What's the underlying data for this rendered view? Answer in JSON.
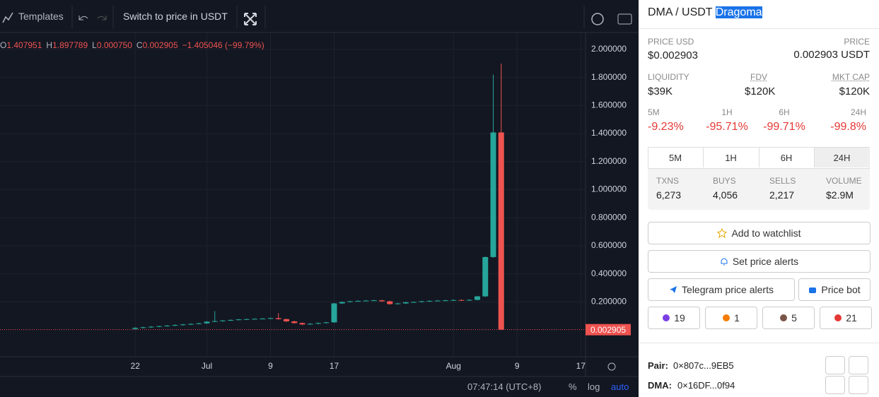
{
  "toolbar": {
    "templates": "Templates",
    "switch": "Switch to price in USDT"
  },
  "ohlc_header": [
    {
      "key": "O",
      "value": "1.407951"
    },
    {
      "key": "H",
      "value": "1.897789"
    },
    {
      "key": "L",
      "value": "0.000750"
    },
    {
      "key": "C",
      "value": "0.002905"
    }
  ],
  "ohlc_change": "−1.405046 (−99.79%)",
  "chart_data": {
    "type": "candlestick",
    "candles": {
      "x": [
        173,
        174,
        175,
        176,
        177,
        178,
        179,
        180,
        181,
        182,
        183,
        184,
        185,
        186,
        187,
        188,
        189,
        190,
        191,
        192,
        193,
        194,
        195,
        196,
        197,
        198,
        199,
        200,
        201,
        202,
        203,
        204,
        205,
        206,
        207,
        208,
        209,
        210,
        211,
        212,
        213,
        214,
        215,
        216,
        217,
        218,
        219
      ],
      "open": [
        0.008,
        0.016,
        0.02,
        0.024,
        0.028,
        0.032,
        0.036,
        0.04,
        0.044,
        0.048,
        0.06,
        0.064,
        0.068,
        0.072,
        0.076,
        0.078,
        0.08,
        0.082,
        0.085,
        0.078,
        0.062,
        0.05,
        0.04,
        0.045,
        0.05,
        0.055,
        0.19,
        0.2,
        0.205,
        0.208,
        0.21,
        0.212,
        0.205,
        0.185,
        0.19,
        0.198,
        0.2,
        0.205,
        0.208,
        0.21,
        0.212,
        0.214,
        0.212,
        0.215,
        0.24,
        0.52,
        1.407951
      ],
      "high": [
        0.02,
        0.024,
        0.028,
        0.032,
        0.036,
        0.04,
        0.044,
        0.048,
        0.052,
        0.064,
        0.135,
        0.072,
        0.076,
        0.08,
        0.082,
        0.084,
        0.086,
        0.089,
        0.12,
        0.082,
        0.066,
        0.054,
        0.049,
        0.054,
        0.059,
        0.194,
        0.204,
        0.209,
        0.212,
        0.214,
        0.216,
        0.216,
        0.209,
        0.194,
        0.202,
        0.204,
        0.209,
        0.212,
        0.214,
        0.216,
        0.218,
        0.218,
        0.219,
        0.244,
        0.524,
        1.82,
        1.897789
      ],
      "low": [
        0.004,
        0.012,
        0.016,
        0.02,
        0.024,
        0.028,
        0.032,
        0.036,
        0.04,
        0.044,
        0.056,
        0.06,
        0.064,
        0.068,
        0.072,
        0.074,
        0.076,
        0.078,
        0.074,
        0.058,
        0.046,
        0.036,
        0.036,
        0.041,
        0.046,
        0.051,
        0.186,
        0.196,
        0.201,
        0.204,
        0.206,
        0.201,
        0.181,
        0.181,
        0.186,
        0.194,
        0.196,
        0.201,
        0.204,
        0.206,
        0.208,
        0.208,
        0.208,
        0.211,
        0.236,
        0.516,
        0.00075
      ],
      "close": [
        0.016,
        0.02,
        0.024,
        0.028,
        0.032,
        0.036,
        0.04,
        0.044,
        0.048,
        0.06,
        0.064,
        0.068,
        0.072,
        0.076,
        0.078,
        0.08,
        0.082,
        0.085,
        0.078,
        0.062,
        0.05,
        0.04,
        0.045,
        0.05,
        0.055,
        0.19,
        0.2,
        0.205,
        0.208,
        0.21,
        0.212,
        0.205,
        0.185,
        0.19,
        0.198,
        0.2,
        0.205,
        0.208,
        0.21,
        0.212,
        0.214,
        0.212,
        0.215,
        0.24,
        0.52,
        1.407951,
        0.002905
      ]
    },
    "up_color": "#26a69a",
    "down_color": "#ef5350",
    "last_price": 0.002905,
    "xlim": [
      156,
      229.6
    ],
    "xticks": [
      {
        "value": 173,
        "label": "22"
      },
      {
        "value": 182,
        "label": "Jul"
      },
      {
        "value": 190,
        "label": "9"
      },
      {
        "value": 198,
        "label": "17"
      },
      {
        "value": 213,
        "label": "Aug"
      },
      {
        "value": 221,
        "label": "9"
      },
      {
        "value": 229,
        "label": "17"
      }
    ],
    "ylim": [
      -0.19,
      2.12
    ],
    "yticks": [
      {
        "value": 0.2,
        "label": "0.200000"
      },
      {
        "value": 0.4,
        "label": "0.400000"
      },
      {
        "value": 0.6,
        "label": "0.600000"
      },
      {
        "value": 0.8,
        "label": "0.800000"
      },
      {
        "value": 1.0,
        "label": "1.000000"
      },
      {
        "value": 1.2,
        "label": "1.200000"
      },
      {
        "value": 1.4,
        "label": "1.400000"
      },
      {
        "value": 1.6,
        "label": "1.600000"
      },
      {
        "value": 1.8,
        "label": "1.800000"
      },
      {
        "value": 2.0,
        "label": "2.000000"
      }
    ],
    "grid": true
  },
  "status_bar": {
    "time": "07:47:14 (UTC+8)",
    "percent": "%",
    "log": "log",
    "auto": "auto"
  },
  "sidebar": {
    "pair": "DMA / USDT",
    "name": "Dragoma",
    "price_usd_label": "PRICE USD",
    "price_usd": "$0.002903",
    "price_label": "PRICE",
    "price": "0.002903 USDT",
    "stats": [
      {
        "label": "LIQUIDITY",
        "value": "$39K"
      },
      {
        "label": "FDV",
        "value": "$120K"
      },
      {
        "label": "MKT CAP",
        "value": "$120K"
      }
    ],
    "changes": [
      {
        "label": "5M",
        "value": "-9.23%"
      },
      {
        "label": "1H",
        "value": "-95.71%"
      },
      {
        "label": "6H",
        "value": "-99.71%"
      },
      {
        "label": "24H",
        "value": "-99.8%"
      }
    ],
    "tabs": [
      "5M",
      "1H",
      "6H",
      "24H"
    ],
    "txns": [
      {
        "label": "TXNS",
        "value": "6,273"
      },
      {
        "label": "BUYS",
        "value": "4,056"
      },
      {
        "label": "SELLS",
        "value": "2,217"
      },
      {
        "label": "VOLUME",
        "value": "$2.9M"
      }
    ],
    "buttons": {
      "watchlist": "Add to watchlist",
      "alerts": "Set price alerts",
      "telegram": "Telegram price alerts",
      "bot": "Price bot"
    },
    "reactions": [
      19,
      1,
      5,
      21
    ],
    "addresses": [
      {
        "label": "Pair:",
        "value": "0×807c...9EB5"
      },
      {
        "label": "DMA:",
        "value": "0×16DF...0f94"
      }
    ]
  }
}
